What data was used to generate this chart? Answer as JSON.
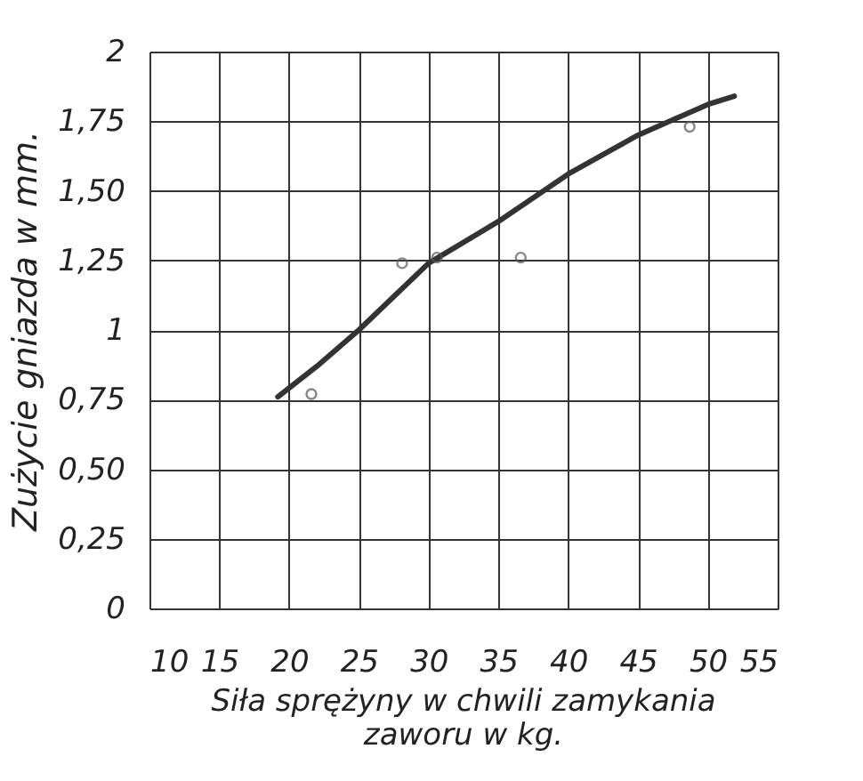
{
  "chart_data": {
    "type": "line",
    "xlabel": "Siła sprężyny w chwili zamykania zaworu w kg.",
    "ylabel": "Zużycie gniazda w mm.",
    "xlim": [
      10,
      55
    ],
    "xticks": [
      10,
      15,
      20,
      25,
      30,
      35,
      40,
      45,
      50,
      55
    ],
    "ylim": [
      0,
      2
    ],
    "yticks": [
      {
        "value": 0,
        "label": "0"
      },
      {
        "value": 0.25,
        "label": "0,25"
      },
      {
        "value": 0.5,
        "label": "0,50"
      },
      {
        "value": 0.75,
        "label": "0,75"
      },
      {
        "value": 1,
        "label": "1"
      },
      {
        "value": 1.25,
        "label": "1,25"
      },
      {
        "value": 1.5,
        "label": "1,50"
      },
      {
        "value": 1.75,
        "label": "1,75"
      },
      {
        "value": 2,
        "label": "2"
      }
    ],
    "grid": true,
    "series": [
      {
        "color": "#333333",
        "line_style": "solid",
        "marker": "none",
        "x": [
          19.2,
          22,
          25,
          30,
          35,
          40,
          45,
          50,
          51.9
        ],
        "values": [
          0.76,
          0.87,
          1.0,
          1.24,
          1.39,
          1.56,
          1.7,
          1.81,
          1.84
        ]
      },
      {
        "type": "scatter",
        "color": "#555555",
        "marker": "circle",
        "x": [
          21.6,
          28.1,
          30.6,
          36.6,
          48.7
        ],
        "values": [
          0.77,
          1.24,
          1.26,
          1.26,
          1.73
        ]
      }
    ]
  }
}
